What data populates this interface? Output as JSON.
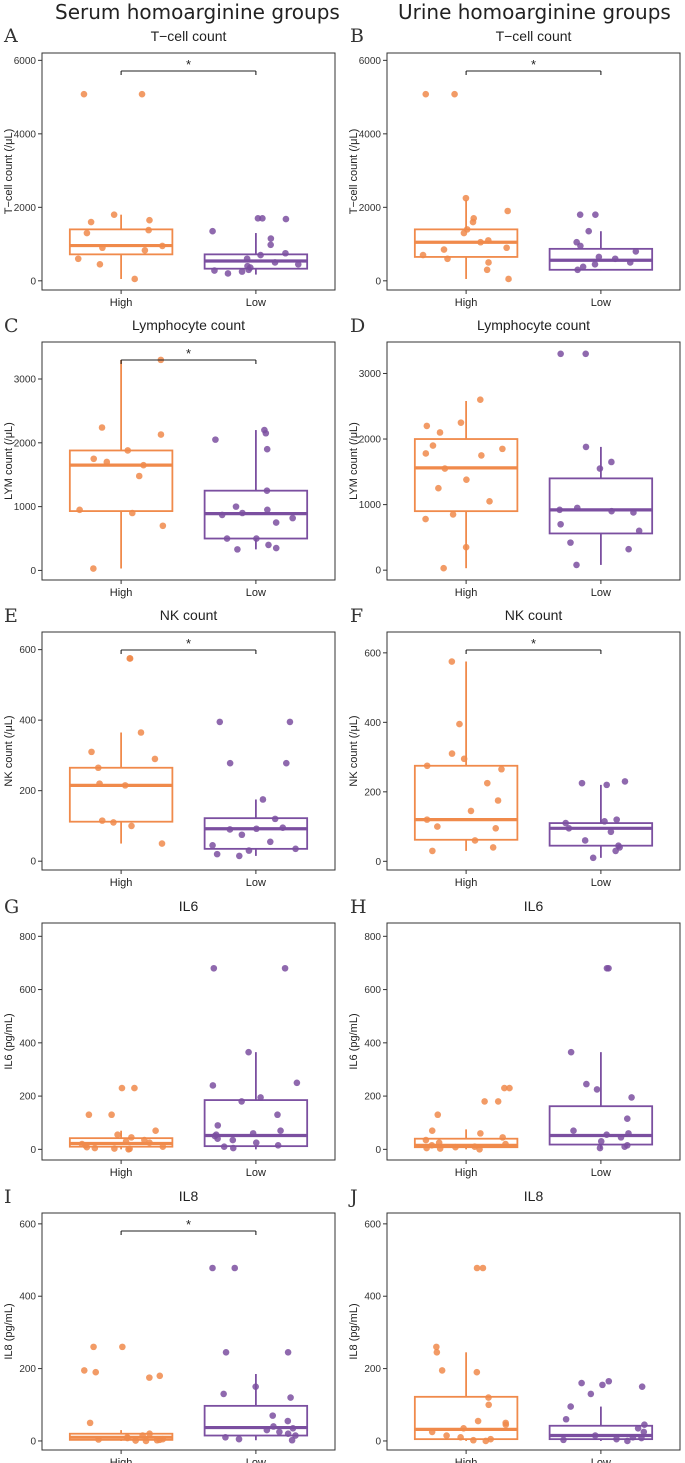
{
  "headers": {
    "left": "Serum homoarginine groups",
    "right": "Urine homoarginine groups"
  },
  "colors": {
    "high": "#F08A4B",
    "low": "#7B4FA0",
    "frame": "#333333",
    "sig": "#222222"
  },
  "chart_data": [
    {
      "letter": "A",
      "type": "box",
      "title": "T−cell count",
      "ylabel": "T−cell count (/μL)",
      "ylim": [
        -250,
        6200
      ],
      "yticks": [
        0,
        2000,
        4000,
        6000
      ],
      "categories": [
        "High",
        "Low"
      ],
      "significance": "*",
      "series": [
        {
          "name": "High",
          "box": [
            720,
            960,
            1400
          ],
          "whisker": [
            50,
            1800
          ],
          "points": [
            5080,
            5080,
            1800,
            1650,
            1600,
            1380,
            1300,
            950,
            900,
            830,
            600,
            450,
            50
          ]
        },
        {
          "name": "Low",
          "box": [
            330,
            540,
            720
          ],
          "whisker": [
            170,
            1300
          ],
          "points": [
            1700,
            1700,
            1680,
            1350,
            1150,
            980,
            750,
            700,
            600,
            500,
            450,
            400,
            360,
            300,
            280,
            250,
            200
          ]
        }
      ]
    },
    {
      "letter": "B",
      "type": "box",
      "title": "T−cell count",
      "ylabel": "T−cell count (/μL)",
      "ylim": [
        -250,
        6200
      ],
      "yticks": [
        0,
        2000,
        4000,
        6000
      ],
      "categories": [
        "High",
        "Low"
      ],
      "significance": "*",
      "series": [
        {
          "name": "High",
          "box": [
            650,
            1050,
            1400
          ],
          "whisker": [
            50,
            2200
          ],
          "points": [
            5080,
            5080,
            2250,
            1900,
            1700,
            1600,
            1400,
            1300,
            1100,
            1050,
            900,
            850,
            700,
            600,
            500,
            300,
            50
          ]
        },
        {
          "name": "Low",
          "box": [
            300,
            560,
            870
          ],
          "whisker": [
            280,
            1350
          ],
          "points": [
            1800,
            1800,
            1350,
            1050,
            950,
            800,
            650,
            600,
            500,
            450,
            380,
            300
          ]
        }
      ]
    },
    {
      "letter": "C",
      "type": "box",
      "title": "Lymphocyte count",
      "ylabel": "LYM count (/μL)",
      "ylim": [
        -150,
        3580
      ],
      "yticks": [
        0,
        1000,
        2000,
        3000
      ],
      "categories": [
        "High",
        "Low"
      ],
      "significance": "*",
      "series": [
        {
          "name": "High",
          "box": [
            930,
            1650,
            1880
          ],
          "whisker": [
            30,
            3300
          ],
          "points": [
            3300,
            2240,
            2130,
            1880,
            1750,
            1700,
            1650,
            1480,
            950,
            900,
            700,
            30
          ]
        },
        {
          "name": "Low",
          "box": [
            500,
            890,
            1250
          ],
          "whisker": [
            330,
            2200
          ],
          "points": [
            2200,
            2150,
            2050,
            1900,
            1250,
            1000,
            950,
            900,
            870,
            820,
            750,
            500,
            500,
            400,
            350,
            330
          ]
        }
      ]
    },
    {
      "letter": "D",
      "type": "box",
      "title": "Lymphocyte count",
      "ylabel": "LYM count (/μL)",
      "ylim": [
        -150,
        3480
      ],
      "yticks": [
        0,
        1000,
        2000,
        3000
      ],
      "categories": [
        "High",
        "Low"
      ],
      "significance": "",
      "series": [
        {
          "name": "High",
          "box": [
            900,
            1560,
            2000
          ],
          "whisker": [
            30,
            2580
          ],
          "points": [
            2600,
            2250,
            2200,
            2100,
            1900,
            1850,
            1780,
            1750,
            1550,
            1380,
            1250,
            1050,
            850,
            780,
            350,
            30
          ]
        },
        {
          "name": "Low",
          "box": [
            560,
            920,
            1400
          ],
          "whisker": [
            80,
            1880
          ],
          "points": [
            3300,
            3300,
            1880,
            1650,
            1550,
            950,
            920,
            900,
            880,
            700,
            600,
            420,
            320,
            80
          ]
        }
      ]
    },
    {
      "letter": "E",
      "type": "box",
      "title": "NK count",
      "ylabel": "NK count (/μL)",
      "ylim": [
        -25,
        650
      ],
      "yticks": [
        0,
        200,
        400,
        600
      ],
      "categories": [
        "High",
        "Low"
      ],
      "significance": "*",
      "series": [
        {
          "name": "High",
          "box": [
            112,
            215,
            265
          ],
          "whisker": [
            50,
            365
          ],
          "points": [
            575,
            575,
            365,
            310,
            290,
            265,
            220,
            215,
            115,
            110,
            100,
            50
          ]
        },
        {
          "name": "Low",
          "box": [
            35,
            92,
            122
          ],
          "whisker": [
            15,
            175
          ],
          "points": [
            395,
            395,
            278,
            278,
            175,
            120,
            95,
            92,
            90,
            75,
            55,
            45,
            35,
            30,
            20,
            15
          ]
        }
      ]
    },
    {
      "letter": "F",
      "type": "box",
      "title": "NK count",
      "ylabel": "NK count (/μL)",
      "ylim": [
        -25,
        660
      ],
      "yticks": [
        0,
        200,
        400,
        600
      ],
      "categories": [
        "High",
        "Low"
      ],
      "significance": "*",
      "series": [
        {
          "name": "High",
          "box": [
            62,
            120,
            275
          ],
          "whisker": [
            30,
            575
          ],
          "points": [
            575,
            395,
            310,
            295,
            275,
            265,
            225,
            175,
            145,
            120,
            100,
            95,
            60,
            40,
            30
          ]
        },
        {
          "name": "Low",
          "box": [
            45,
            95,
            110
          ],
          "whisker": [
            10,
            220
          ],
          "points": [
            230,
            225,
            220,
            120,
            115,
            110,
            95,
            85,
            60,
            45,
            40,
            30,
            10
          ]
        }
      ]
    },
    {
      "letter": "G",
      "type": "box",
      "title": "IL6",
      "ylabel": "IL6 (pg/mL)",
      "ylim": [
        -40,
        850
      ],
      "yticks": [
        0,
        200,
        400,
        600,
        800
      ],
      "categories": [
        "High",
        "Low"
      ],
      "significance": "",
      "series": [
        {
          "name": "High",
          "box": [
            10,
            22,
            42
          ],
          "whisker": [
            0,
            70
          ],
          "points": [
            230,
            230,
            130,
            130,
            70,
            55,
            45,
            35,
            30,
            25,
            20,
            15,
            10,
            8,
            5,
            3,
            2,
            0
          ]
        },
        {
          "name": "Low",
          "box": [
            12,
            52,
            185
          ],
          "whisker": [
            0,
            365
          ],
          "points": [
            680,
            680,
            365,
            250,
            240,
            195,
            180,
            130,
            90,
            70,
            60,
            55,
            50,
            40,
            35,
            25,
            15,
            10,
            5
          ]
        }
      ]
    },
    {
      "letter": "H",
      "type": "box",
      "title": "IL6",
      "ylabel": "IL6 (pg/mL)",
      "ylim": [
        -40,
        850
      ],
      "yticks": [
        0,
        200,
        400,
        600,
        800
      ],
      "categories": [
        "High",
        "Low"
      ],
      "significance": "",
      "series": [
        {
          "name": "High",
          "box": [
            8,
            15,
            40
          ],
          "whisker": [
            0,
            75
          ],
          "points": [
            230,
            230,
            180,
            180,
            130,
            70,
            60,
            45,
            35,
            25,
            20,
            15,
            10,
            8,
            5,
            3,
            0
          ]
        },
        {
          "name": "Low",
          "box": [
            18,
            52,
            162
          ],
          "whisker": [
            2,
            365
          ],
          "points": [
            680,
            680,
            365,
            245,
            225,
            195,
            115,
            70,
            60,
            55,
            45,
            30,
            15,
            10,
            5
          ]
        }
      ]
    },
    {
      "letter": "I",
      "type": "box",
      "title": "IL8",
      "ylabel": "IL8 (pg/mL)",
      "ylim": [
        -25,
        630
      ],
      "yticks": [
        0,
        200,
        400,
        600
      ],
      "categories": [
        "High",
        "Low"
      ],
      "significance": "*",
      "series": [
        {
          "name": "High",
          "box": [
            3,
            10,
            20
          ],
          "whisker": [
            0,
            30
          ],
          "points": [
            260,
            260,
            195,
            190,
            180,
            175,
            50,
            20,
            15,
            10,
            8,
            5,
            4,
            3,
            2,
            1,
            0
          ]
        },
        {
          "name": "Low",
          "box": [
            15,
            37,
            97
          ],
          "whisker": [
            2,
            185
          ],
          "points": [
            478,
            478,
            245,
            245,
            150,
            130,
            120,
            70,
            55,
            40,
            35,
            30,
            25,
            20,
            15,
            10,
            5,
            2
          ]
        }
      ]
    },
    {
      "letter": "J",
      "type": "box",
      "title": "IL8",
      "ylabel": "IL8 (pg/mL)",
      "ylim": [
        -25,
        630
      ],
      "yticks": [
        0,
        200,
        400,
        600
      ],
      "categories": [
        "High",
        "Low"
      ],
      "significance": "",
      "series": [
        {
          "name": "High",
          "box": [
            5,
            32,
            122
          ],
          "whisker": [
            0,
            245
          ],
          "points": [
            478,
            478,
            260,
            245,
            195,
            190,
            120,
            100,
            55,
            50,
            45,
            35,
            25,
            15,
            10,
            5,
            2,
            0
          ]
        },
        {
          "name": "Low",
          "box": [
            5,
            15,
            42
          ],
          "whisker": [
            0,
            95
          ],
          "points": [
            165,
            160,
            155,
            150,
            130,
            95,
            60,
            45,
            35,
            25,
            15,
            10,
            8,
            5,
            3,
            0
          ]
        }
      ]
    }
  ]
}
